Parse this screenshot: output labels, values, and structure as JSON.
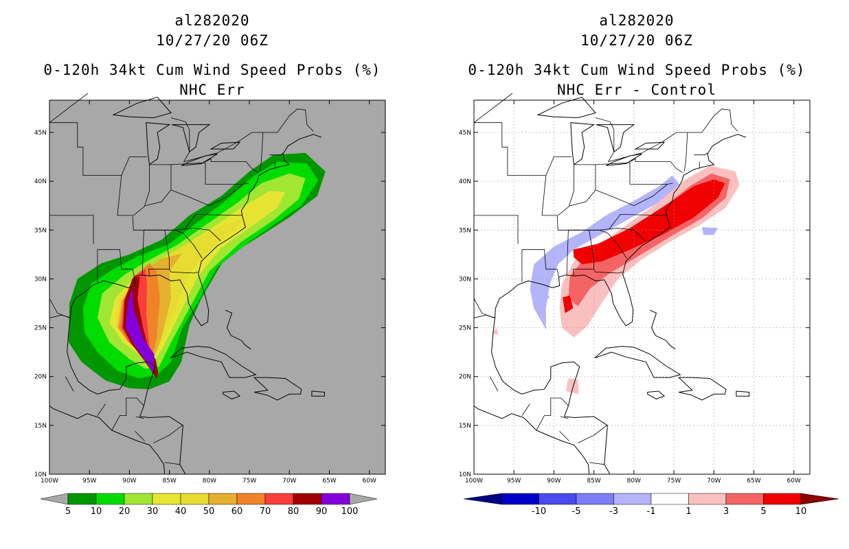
{
  "left_panel": {
    "storm_id": "al282020",
    "datetime": "10/27/20 06Z",
    "title": "0-120h 34kt Cum Wind Speed Probs (%)",
    "subtitle": "NHC Err",
    "background": "#a8a8a8",
    "lat_labels": [
      "45N",
      "40N",
      "35N",
      "30N",
      "25N",
      "20N",
      "15N",
      "10N"
    ],
    "lon_labels": [
      "100W",
      "95W",
      "90W",
      "85W",
      "80W",
      "75W",
      "70W",
      "65W",
      "60W"
    ],
    "colorbar": {
      "levels": [
        "5",
        "10",
        "20",
        "30",
        "40",
        "50",
        "60",
        "70",
        "80",
        "90",
        "100"
      ],
      "colors": [
        "#009600",
        "#00dc00",
        "#a0e632",
        "#e6e632",
        "#e6dc32",
        "#e6af2d",
        "#f08228",
        "#fa3c3c",
        "#a00000",
        "#8200dc"
      ],
      "end_color": "#a8a8a8"
    }
  },
  "right_panel": {
    "storm_id": "al282020",
    "datetime": "10/27/20 06Z",
    "title": "0-120h 34kt Cum Wind Speed Probs (%)",
    "subtitle": "NHC Err - Control",
    "background": "#ffffff",
    "lat_labels": [
      "45N",
      "40N",
      "35N",
      "30N",
      "25N",
      "20N",
      "15N",
      "10N"
    ],
    "lon_labels": [
      "100W",
      "95W",
      "90W",
      "85W",
      "80W",
      "75W",
      "70W",
      "65W",
      "60W"
    ],
    "colorbar": {
      "levels": [
        "-10",
        "-5",
        "-3",
        "-1",
        "1",
        "3",
        "5",
        "10"
      ],
      "colors": [
        "#0000c8",
        "#4a4af0",
        "#7d7df5",
        "#b4b4fa",
        "#ffffff",
        "#fac0c0",
        "#f56464",
        "#f00000",
        "#8c0000"
      ],
      "end_color_low": "#000082",
      "end_color_high": "#8c0000"
    }
  }
}
